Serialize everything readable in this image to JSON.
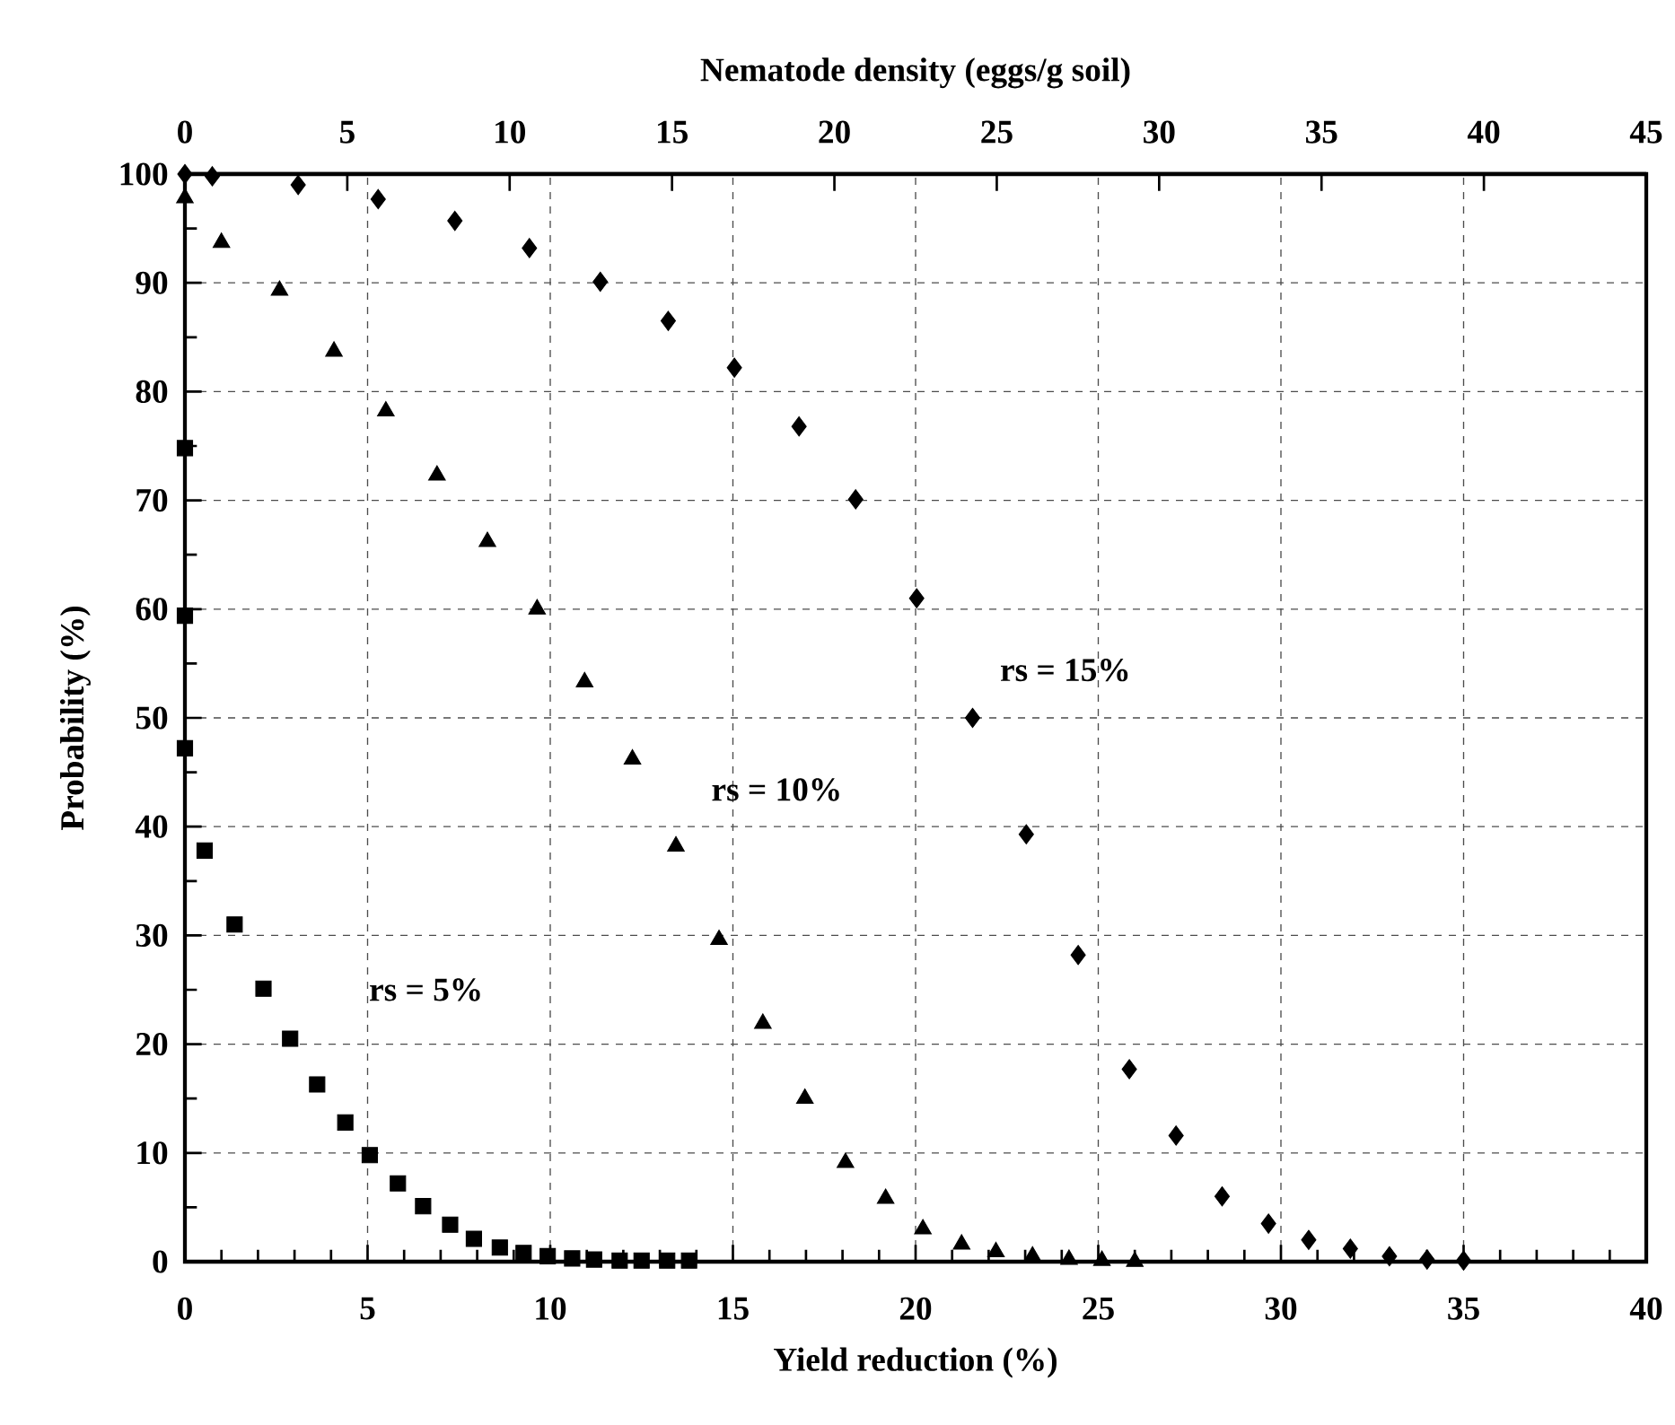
{
  "chart_data": {
    "type": "scatter",
    "xlabel": "Yield reduction (%)",
    "ylabel": "Probability (%)",
    "x2label": "Nematode density (eggs/g soil)",
    "xlim": [
      0,
      40
    ],
    "xticks": [
      0,
      5,
      10,
      15,
      20,
      25,
      30,
      35,
      40
    ],
    "ylim": [
      0,
      100
    ],
    "yticks": [
      0,
      10,
      20,
      30,
      40,
      50,
      60,
      70,
      80,
      90,
      100
    ],
    "x2lim": [
      0,
      45
    ],
    "x2ticks": [
      0,
      5,
      10,
      15,
      20,
      25,
      30,
      35,
      40,
      45
    ],
    "grid": true,
    "series": [
      {
        "name": "rs = 5%",
        "color": "#000000",
        "marker": "square",
        "x": [
          0,
          0,
          0,
          0.54,
          1.36,
          2.15,
          2.88,
          3.62,
          4.39,
          5.06,
          5.83,
          6.52,
          7.26,
          7.91,
          8.62,
          9.27,
          9.93,
          10.6,
          11.2,
          11.9,
          12.5,
          13.2,
          13.8
        ],
        "values": [
          74.8,
          59.4,
          47.2,
          37.8,
          31.0,
          25.1,
          20.5,
          16.3,
          12.8,
          9.8,
          7.2,
          5.1,
          3.4,
          2.1,
          1.3,
          0.8,
          0.5,
          0.3,
          0.2,
          0.1,
          0.1,
          0.1,
          0.1
        ]
      },
      {
        "name": "rs = 10%",
        "color": "#000000",
        "marker": "triangle",
        "x": [
          0,
          1.0,
          2.59,
          4.08,
          5.5,
          6.9,
          8.28,
          9.64,
          10.94,
          12.25,
          13.44,
          14.62,
          15.82,
          16.97,
          18.08,
          19.18,
          20.2,
          21.26,
          22.2,
          23.2,
          24.2,
          25.1,
          26.0
        ],
        "values": [
          97.8,
          93.7,
          89.3,
          83.7,
          78.2,
          72.3,
          66.2,
          60.0,
          53.3,
          46.2,
          38.2,
          29.6,
          21.9,
          15.0,
          9.1,
          5.8,
          3.0,
          1.6,
          0.9,
          0.5,
          0.2,
          0.1,
          0.0
        ]
      },
      {
        "name": "rs = 15%",
        "color": "#000000",
        "marker": "diamond",
        "x": [
          0,
          0.75,
          3.1,
          5.29,
          7.39,
          9.43,
          11.37,
          13.23,
          15.04,
          16.81,
          18.36,
          20.03,
          21.56,
          23.03,
          24.45,
          25.85,
          27.13,
          28.39,
          29.66,
          30.76,
          31.9,
          32.97,
          34.0,
          35.0
        ],
        "values": [
          100,
          99.8,
          99.0,
          97.7,
          95.7,
          93.2,
          90.1,
          86.5,
          82.2,
          76.8,
          70.1,
          61.0,
          50.0,
          39.3,
          28.2,
          17.7,
          11.6,
          6.0,
          3.5,
          2.0,
          1.2,
          0.5,
          0.2,
          0.1
        ]
      }
    ]
  }
}
